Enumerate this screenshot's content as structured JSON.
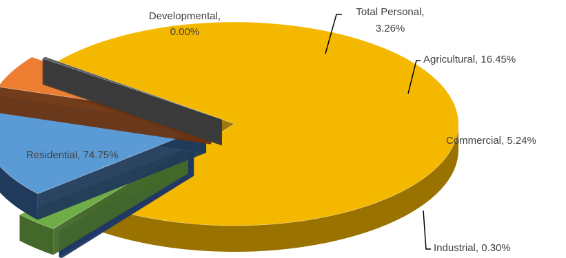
{
  "chart_data": {
    "type": "pie",
    "style": "3d-exploded",
    "title": "",
    "slices": [
      {
        "name": "Residential",
        "value": 74.75,
        "label": "Residential, 74.75%",
        "color": "#f5b800",
        "dark": "#9a7200"
      },
      {
        "name": "Developmental",
        "value": 0.0,
        "label_line1": "Developmental,",
        "label_line2": "0.00%",
        "color": "#2f5597",
        "dark": "#1f3864"
      },
      {
        "name": "Total Personal",
        "value": 3.26,
        "label_line1": "Total Personal,",
        "label_line2": "3.26%",
        "color": "#70ad47",
        "dark": "#43682a"
      },
      {
        "name": "Agricultural",
        "value": 16.45,
        "label": "Agricultural, 16.45%",
        "color": "#5b9bd5",
        "dark": "#1f3a5a"
      },
      {
        "name": "Commercial",
        "value": 5.24,
        "label": "Commercial, 5.24%",
        "color": "#ed7d31",
        "dark": "#6b3310"
      },
      {
        "name": "Industrial",
        "value": 0.3,
        "label": "Industrial, 0.30%",
        "color": "#595959",
        "dark": "#3a3a3a"
      }
    ]
  }
}
